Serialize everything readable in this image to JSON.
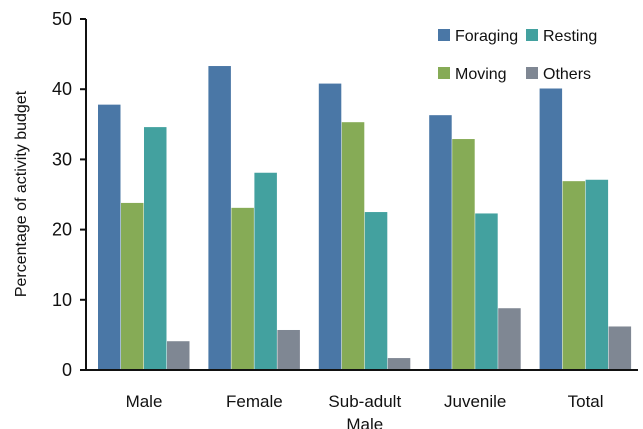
{
  "chart_data": {
    "type": "bar",
    "categories": [
      [
        "Male"
      ],
      [
        "Female"
      ],
      [
        "Sub-adult",
        "Male"
      ],
      [
        "Juvenile"
      ],
      [
        "Total"
      ]
    ],
    "series": [
      {
        "name": "Foraging",
        "color": "#4a77a6",
        "values": [
          37.8,
          43.3,
          40.8,
          36.3,
          40.1
        ]
      },
      {
        "name": "Moving",
        "color": "#86ab56",
        "values": [
          23.8,
          23.1,
          35.3,
          32.9,
          26.9
        ]
      },
      {
        "name": "Resting",
        "color": "#43a19f",
        "values": [
          34.6,
          28.1,
          22.5,
          22.3,
          27.1
        ]
      },
      {
        "name": "Others",
        "color": "#7f8793",
        "values": [
          4.1,
          5.7,
          1.7,
          8.8,
          6.2
        ]
      }
    ],
    "xlabel": "",
    "ylabel": "Percentage of activity budget",
    "ylim": [
      0,
      50
    ],
    "yticks": [
      0,
      10,
      20,
      30,
      40,
      50
    ],
    "grid": false,
    "legend": {
      "position": "top-right"
    }
  }
}
